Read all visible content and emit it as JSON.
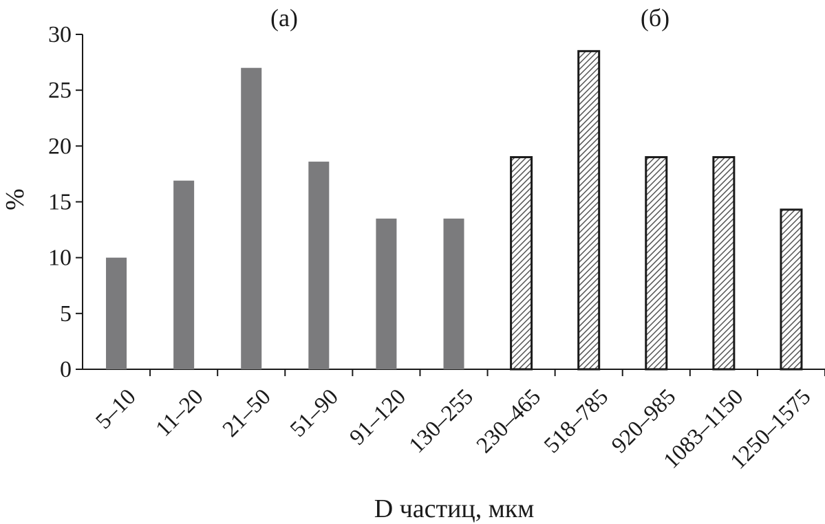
{
  "chart_data": {
    "type": "bar",
    "xlabel": "D частиц, мкм",
    "ylabel": "%",
    "ylim": [
      0,
      30
    ],
    "yticks": [
      0,
      5,
      10,
      15,
      20,
      25,
      30
    ],
    "grid": false,
    "panel_labels": [
      "(а)",
      "(б)"
    ],
    "categories": [
      "5–10",
      "11–20",
      "21–50",
      "51–90",
      "91–120",
      "130–255",
      "230–465",
      "518–785",
      "920–985",
      "1083–1150",
      "1250–1575"
    ],
    "series": [
      {
        "values": [
          10.0,
          16.9,
          27.0,
          18.6,
          13.5,
          13.5,
          null,
          null,
          null,
          null,
          null
        ],
        "fill": "gray",
        "color": "#7b7b7d"
      },
      {
        "values": [
          null,
          null,
          null,
          null,
          null,
          null,
          19.0,
          28.5,
          19.0,
          19.0,
          14.3
        ],
        "fill": "hatched",
        "color": "#1a1a1a"
      }
    ]
  }
}
